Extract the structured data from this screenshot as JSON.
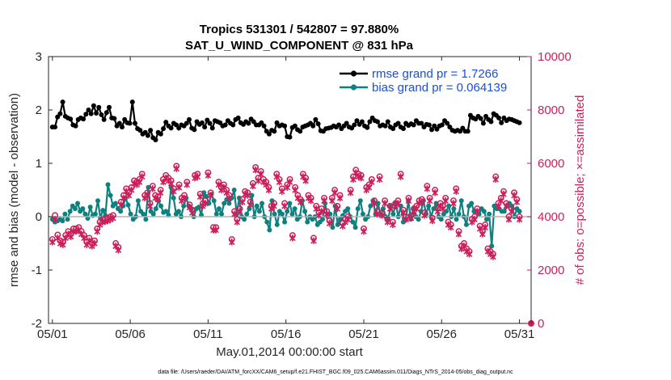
{
  "chart_data": {
    "type": "line",
    "title_line1": "Tropics 531301 / 542807 = 97.880%",
    "title_line2": "SAT_U_WIND_COMPONENT @ 831 hPa",
    "xlabel": "May.01,2014 00:00:00 start",
    "ylabel_left": "rmse and bias (model - observation)",
    "ylabel_right": "# of obs: o=possible; ×=assimilated",
    "footnote": "data file: /Users/raeder/DAI/ATM_forcXX/CAM6_setup/f.e21.FHIST_BGC.f09_025.CAM6assim.011/Diags_NTrS_2014-05/obs_diag_output.nc",
    "x_ticks": [
      "05/01",
      "05/06",
      "05/11",
      "05/16",
      "05/21",
      "05/26",
      "05/31"
    ],
    "x_tick_days": [
      0,
      5,
      10,
      15,
      20,
      25,
      30
    ],
    "xlim_days": [
      -0.25,
      30.75
    ],
    "ylim_left": [
      -2,
      3
    ],
    "y_ticks_left": [
      "-2",
      "-1",
      "0",
      "1",
      "2",
      "3"
    ],
    "ylim_right": [
      0,
      10000
    ],
    "y_ticks_right": [
      "0",
      "2000",
      "4000",
      "6000",
      "8000",
      "10000"
    ],
    "colors": {
      "rmse": "#000000",
      "bias": "#0f8080",
      "obs": "#cc1f5a",
      "zero_line": "#b3b3b3",
      "legend_text": "#1a4fd6"
    },
    "legend": [
      {
        "name": "rmse grand pr = 1.7266",
        "series": "rmse"
      },
      {
        "name": "bias grand pr = 0.064139",
        "series": "bias"
      }
    ],
    "series": [
      {
        "name": "rmse",
        "values": [
          1.68,
          1.68,
          1.87,
          1.93,
          2.15,
          1.88,
          1.85,
          1.83,
          1.72,
          1.7,
          1.82,
          1.85,
          1.83,
          1.92,
          2.0,
          1.93,
          2.08,
          1.94,
          2.05,
          1.91,
          1.82,
          1.95,
          2.05,
          1.85,
          1.84,
          1.7,
          1.75,
          1.68,
          1.82,
          1.76,
          1.75,
          2.15,
          1.75,
          1.65,
          1.62,
          1.55,
          1.58,
          1.52,
          1.62,
          1.48,
          1.44,
          1.58,
          1.55,
          1.65,
          1.77,
          1.7,
          1.66,
          1.75,
          1.72,
          1.66,
          1.72,
          1.7,
          1.75,
          1.82,
          1.66,
          1.63,
          1.78,
          1.73,
          1.76,
          1.68,
          1.81,
          1.75,
          1.66,
          1.8,
          1.78,
          1.76,
          1.7,
          1.72,
          1.8,
          1.75,
          1.72,
          1.82,
          1.85,
          1.76,
          1.73,
          1.78,
          1.75,
          1.83,
          1.78,
          1.72,
          1.72,
          1.76,
          1.7,
          1.6,
          1.55,
          1.62,
          1.6,
          1.76,
          1.7,
          1.72,
          1.7,
          1.5,
          1.49,
          1.67,
          1.7,
          1.63,
          1.6,
          1.68,
          1.7,
          1.72,
          1.75,
          1.7,
          1.82,
          1.74,
          1.61,
          1.6,
          1.65,
          1.66,
          1.67,
          1.7,
          1.68,
          1.72,
          1.65,
          1.7,
          1.75,
          1.68,
          1.66,
          1.72,
          1.8,
          1.73,
          1.78,
          1.7,
          1.67,
          1.78,
          1.85,
          1.8,
          1.78,
          1.7,
          1.72,
          1.7,
          1.78,
          1.68,
          1.65,
          1.72,
          1.75,
          1.68,
          1.65,
          1.75,
          1.71,
          1.74,
          1.72,
          1.8,
          1.75,
          1.75,
          1.68,
          1.73,
          1.72,
          1.63,
          1.7,
          1.64,
          1.7,
          1.72,
          1.8,
          1.75,
          1.68,
          1.62,
          1.6,
          1.62,
          1.6,
          1.66,
          1.6,
          1.6,
          1.9,
          1.85,
          1.83,
          1.88,
          1.84,
          1.75,
          1.88,
          1.82,
          1.78,
          1.93,
          1.9,
          1.85,
          1.76,
          1.85,
          1.8,
          1.83,
          1.82,
          1.8,
          1.78,
          1.76
        ]
      },
      {
        "name": "bias",
        "values": [
          -0.05,
          -0.1,
          -0.08,
          -0.05,
          -0.08,
          0.05,
          -0.05,
          0.1,
          0.2,
          0.15,
          0.25,
          0.1,
          0.15,
          0.05,
          -0.03,
          0.18,
          0.02,
          0.05,
          0.3,
          -0.02,
          0.12,
          0.02,
          0.6,
          0.4,
          0.2,
          0.25,
          0.15,
          0.1,
          0.2,
          0.35,
          0.22,
          0.05,
          -0.05,
          0.0,
          0.3,
          0.1,
          0.05,
          -0.05,
          0.55,
          0.1,
          0.05,
          0.15,
          0.3,
          0.2,
          0.08,
          0.1,
          0.03,
          0.55,
          0.35,
          0.05,
          0.1,
          0.0,
          0.2,
          0.35,
          0.2,
          0.15,
          0.0,
          0.15,
          0.18,
          0.03,
          0.45,
          0.38,
          0.25,
          0.42,
          0.3,
          0.05,
          0.15,
          0.05,
          0.25,
          0.32,
          0.25,
          0.35,
          0.5,
          0.05,
          0.35,
          0.0,
          -0.05,
          0.05,
          0.15,
          0.4,
          0.0,
          0.2,
          0.1,
          0.25,
          0.0,
          -0.1,
          -0.25,
          0.3,
          0.05,
          -0.15,
          0.1,
          0.05,
          -0.1,
          0.1,
          0.25,
          0.05,
          0.15,
          -0.05,
          0.0,
          0.3,
          0.1,
          -0.1,
          0.0,
          -0.05,
          0.0,
          -0.15,
          -0.1,
          -0.05,
          0.25,
          0.0,
          0.05,
          -0.2,
          0.2,
          -0.15,
          -0.05,
          0.02,
          0.1,
          0.15,
          0.0,
          -0.1,
          -0.2,
          0.15,
          0.3,
          0.05,
          -0.05,
          0.0,
          0.2,
          0.3,
          0.05,
          0.25,
          0.02,
          0.15,
          0.0,
          -0.05,
          0.2,
          0.05,
          0.25,
          0.0,
          0.2,
          -0.1,
          -0.05,
          0.3,
          -0.05,
          0.15,
          0.0,
          -0.05,
          0.1,
          0.3,
          0.05,
          0.2,
          0.0,
          0.15,
          0.25,
          0.0,
          -0.05,
          0.05,
          0.1,
          0.2,
          0.0,
          0.15,
          -0.05,
          0.05,
          0.3,
          0.0,
          -0.15,
          0.2,
          0.25,
          0.1,
          0.1,
          0.05,
          0.15,
          0.1,
          -0.05,
          0.05,
          -0.55,
          0.2,
          0.15,
          0.15,
          0.1,
          0.1,
          0.2,
          0.25,
          0.2,
          0.0,
          0.15,
          0.1
        ]
      },
      {
        "name": "obs_possible",
        "values": [
          3150,
          4050,
          3320,
          3100,
          3050,
          3300,
          3450,
          3350,
          3550,
          3550,
          3600,
          3450,
          3300,
          3050,
          3200,
          3000,
          3100,
          3550,
          3800,
          3900,
          3920,
          3950,
          4000,
          4050,
          3000,
          2850,
          4550,
          4800,
          5050,
          4900,
          5100,
          5350,
          5300,
          5400,
          5600,
          4800,
          4900,
          4500,
          5150,
          4800,
          4750,
          5000,
          5400,
          5550,
          5450,
          5350,
          5050,
          5900,
          5200,
          4700,
          4800,
          5300,
          4450,
          4250,
          5550,
          5600,
          4850,
          4500,
          4600,
          5650,
          4900,
          3600,
          3600,
          5300,
          5100,
          5200,
          5000,
          4800,
          3150,
          4200,
          3900,
          4300,
          4650,
          4950,
          4900,
          4550,
          5250,
          5850,
          5450,
          5700,
          5400,
          5300,
          5100,
          4400,
          4500,
          5600,
          5400,
          5050,
          4500,
          5200,
          5400,
          3300,
          5100,
          4800,
          4650,
          5600,
          5450,
          4800,
          4700,
          3200,
          4400,
          4150,
          4300,
          4700,
          4200,
          3850,
          4700,
          5000,
          4400,
          4800,
          3750,
          3900,
          4000,
          5000,
          5500,
          5750,
          5600,
          5550,
          3550,
          5100,
          5200,
          5400,
          4600,
          4200,
          5500,
          4150,
          4600,
          3900,
          4400,
          3800,
          4500,
          4600,
          5600,
          4250,
          4000,
          4700,
          4050,
          4300,
          4400,
          4600,
          4650,
          4150,
          5150,
          4700,
          3950,
          5000,
          4300,
          4500,
          4400,
          4700,
          3800,
          3700,
          4600,
          5050,
          3450,
          2900,
          3000,
          2800,
          2700,
          3900,
          4000,
          4300,
          3650,
          3450,
          3700,
          2800,
          2700,
          2600,
          5500,
          4500,
          4700,
          4950,
          4500,
          4000,
          4300,
          4900,
          4650,
          4000
        ]
      },
      {
        "name": "obs_assimilated",
        "values": [
          3050,
          3900,
          3200,
          3000,
          2950,
          3200,
          3350,
          3250,
          3450,
          3450,
          3500,
          3350,
          3200,
          2950,
          3100,
          2900,
          3000,
          3450,
          3700,
          3800,
          3820,
          3850,
          3900,
          3950,
          2900,
          2750,
          4450,
          4700,
          4950,
          4800,
          5000,
          5250,
          5200,
          5300,
          5500,
          4700,
          4800,
          4400,
          5050,
          4700,
          4650,
          4900,
          5300,
          5450,
          5350,
          5250,
          4950,
          5800,
          5100,
          4600,
          4700,
          5200,
          4350,
          4150,
          5450,
          5500,
          4750,
          4400,
          4500,
          5550,
          4800,
          3500,
          3500,
          5200,
          5000,
          5100,
          4900,
          4700,
          3050,
          4100,
          3800,
          4200,
          4550,
          4850,
          4800,
          4450,
          5150,
          5750,
          5350,
          5600,
          5300,
          5200,
          5000,
          4300,
          4400,
          5500,
          5300,
          4950,
          4400,
          5100,
          5300,
          3200,
          5000,
          4700,
          4550,
          5500,
          5350,
          4700,
          4600,
          3100,
          4300,
          4050,
          4200,
          4600,
          4100,
          3750,
          4600,
          4900,
          4300,
          4700,
          3650,
          3800,
          3900,
          4900,
          5400,
          5650,
          5500,
          5450,
          3450,
          5000,
          5100,
          5300,
          4500,
          4100,
          5400,
          4050,
          4500,
          3800,
          4300,
          3700,
          4400,
          4500,
          5500,
          4150,
          3900,
          4600,
          3950,
          4200,
          4300,
          4500,
          4550,
          4050,
          5050,
          4600,
          3850,
          4900,
          4200,
          4400,
          4300,
          4600,
          3700,
          3600,
          4500,
          4950,
          3350,
          2800,
          2900,
          2700,
          2600,
          3800,
          3900,
          4200,
          3550,
          3350,
          3600,
          2700,
          2600,
          2500,
          5400,
          4400,
          4600,
          4850,
          4400,
          3900,
          4200,
          4800,
          4550,
          3900
        ]
      }
    ]
  }
}
